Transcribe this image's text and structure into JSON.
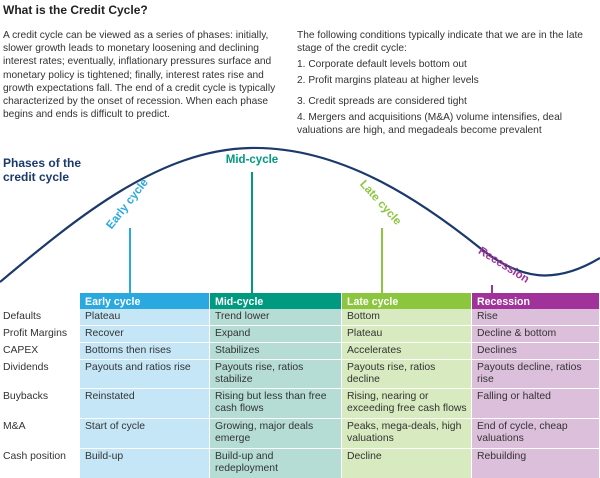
{
  "header": {
    "title": "What is the Credit Cycle?"
  },
  "intro": "A credit cycle can be viewed as a series of phases: initially, slower growth leads to monetary loosening and declining interest rates; eventually, inflationary pressures surface and monetary policy is tightened; finally, interest rates rise and growth expectations fall. The end of a credit cycle is typically characterized by the onset of recession. When each phase begins and ends is difficult to predict.",
  "conditions": {
    "intro": "The following conditions typically indicate that we are in the late stage of the credit cycle:",
    "items": [
      "1. Corporate default levels bottom out",
      "2. Profit margins plateau at higher levels",
      "3. Credit spreads are considered tight",
      "4. Mergers and acquisitions (M&A) volume intensifies, deal valuations are high, and megadeals become prevalent"
    ]
  },
  "diagram": {
    "title": "Phases of the credit cycle",
    "phases": [
      "Early cycle",
      "Mid-cycle",
      "Late cycle",
      "Recession"
    ]
  },
  "table": {
    "columns": [
      "Early cycle",
      "Mid-cycle",
      "Late cycle",
      "Recession"
    ],
    "rows": [
      {
        "label": "Defaults",
        "cells": [
          "Plateau",
          "Trend lower",
          "Bottom",
          "Rise"
        ]
      },
      {
        "label": "Profit Margins",
        "cells": [
          "Recover",
          "Expand",
          "Plateau",
          "Decline & bottom"
        ]
      },
      {
        "label": "CAPEX",
        "cells": [
          "Bottoms then rises",
          "Stabilizes",
          "Accelerates",
          "Declines"
        ]
      },
      {
        "label": "Dividends",
        "cells": [
          "Payouts and ratios rise",
          "Payouts rise, ratios stabilize",
          "Payouts rise, ratios decline",
          "Payouts decline, ratios rise"
        ]
      },
      {
        "label": "Buybacks",
        "cells": [
          "Reinstated",
          "Rising but less than free cash flows",
          "Rising, nearing or exceeding free cash flows",
          "Falling or halted"
        ]
      },
      {
        "label": "M&A",
        "cells": [
          "Start of cycle",
          "Growing, major deals emerge",
          "Peaks, mega-deals, high valuations",
          "End of cycle, cheap valuations"
        ]
      },
      {
        "label": "Cash position",
        "cells": [
          "Build-up",
          "Build-up and redeployment",
          "Decline",
          "Rebuilding"
        ]
      }
    ]
  }
}
